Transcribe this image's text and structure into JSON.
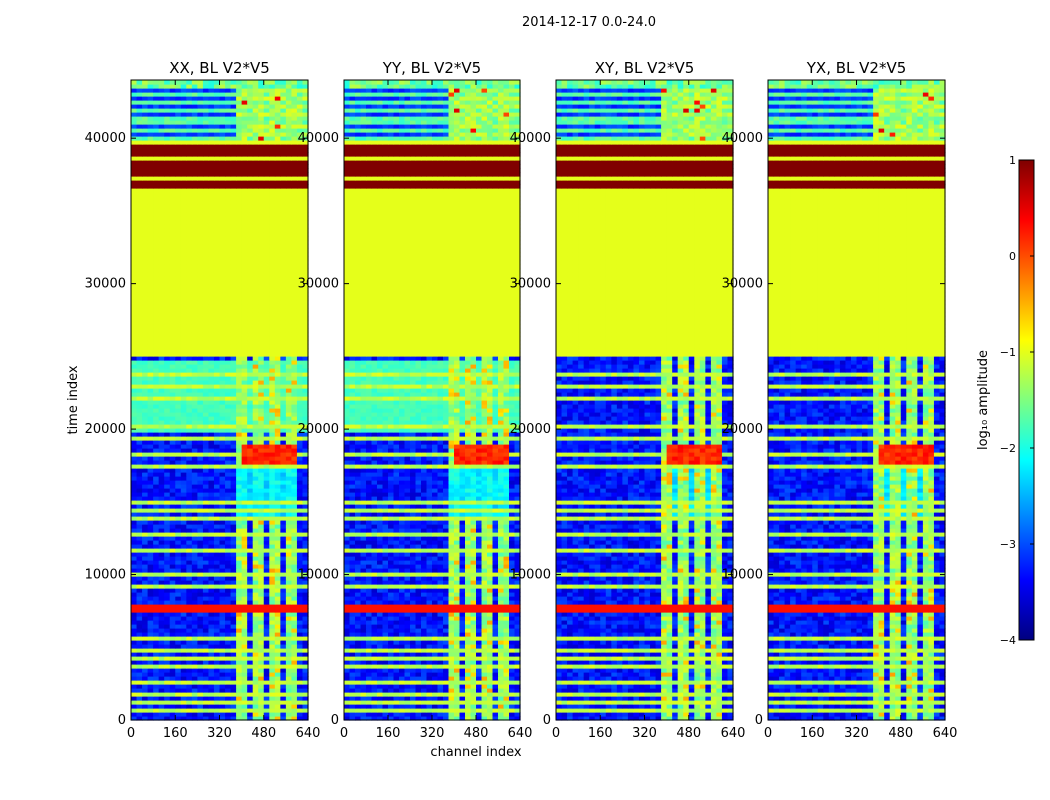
{
  "suptitle": "2014-12-17 0.0-24.0",
  "chart_data": {
    "type": "heatmap",
    "xlabel": "channel index",
    "ylabel": "time index",
    "x_ticks": [
      0,
      160,
      320,
      480,
      640
    ],
    "x_tick_labels": [
      "0",
      "160",
      "320",
      "480",
      "640"
    ],
    "y_ticks": [
      0,
      10000,
      20000,
      30000,
      40000
    ],
    "y_tick_labels": [
      "0",
      "10000",
      "20000",
      "30000",
      "40000"
    ],
    "xlim": [
      0,
      640
    ],
    "ylim": [
      0,
      44000
    ],
    "colorbar": {
      "label": "log₁₀ amplitude",
      "vmin": -4,
      "vmax": 1,
      "ticks": [
        -4,
        -3,
        -2,
        -1,
        0,
        1
      ],
      "tick_labels": [
        "−4",
        "−3",
        "−2",
        "−1",
        "0",
        "1"
      ],
      "colormap": "jet",
      "colors": [
        "#00007f",
        "#0000ff",
        "#007fff",
        "#00ffff",
        "#7fff7f",
        "#ffff00",
        "#ff7f00",
        "#ff0000",
        "#7f0000"
      ]
    },
    "panels": [
      {
        "title": "XX, BL V2*V5",
        "polarization": "XX",
        "cross": false
      },
      {
        "title": "YY, BL V2*V5",
        "polarization": "YY",
        "cross": false
      },
      {
        "title": "XY, BL V2*V5",
        "polarization": "XY",
        "cross": true
      },
      {
        "title": "YX, BL V2*V5",
        "polarization": "YX",
        "cross": true
      }
    ],
    "regions": {
      "flagged_constant": {
        "t_start": 25000,
        "t_end": 36500,
        "value": -1.0
      },
      "saturated_block": {
        "t_start": 36500,
        "t_end": 39500,
        "value": 1.0
      },
      "saturated_band": {
        "t_start": 7500,
        "t_end": 8000,
        "value": 0.3
      },
      "top_header": {
        "t_start": 39500,
        "t_end": 40000,
        "value": -1.0
      },
      "upper_block": {
        "t_start": 40000,
        "t_end": 44000
      },
      "rfi_channels": [
        [
          390,
          420
        ],
        [
          445,
          480
        ],
        [
          495,
          530
        ],
        [
          560,
          600
        ]
      ]
    }
  }
}
